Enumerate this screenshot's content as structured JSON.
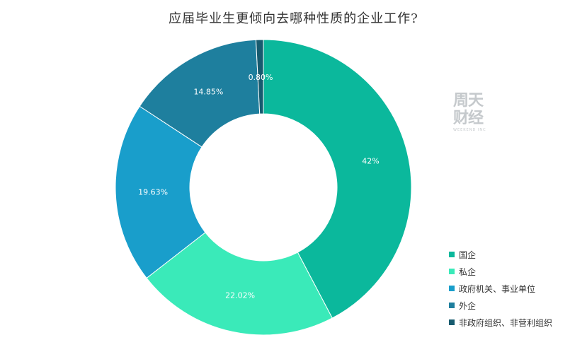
{
  "chart_data": {
    "type": "pie",
    "title": "应届毕业生更倾向去哪种性质的企业工作?",
    "donut": true,
    "legend_placement": "bottom-right",
    "categories": [
      "国企",
      "私企",
      "政府机关、事业单位",
      "外企",
      "非政府组织、非营利组织"
    ],
    "values": [
      42,
      22.02,
      19.63,
      14.85,
      0.8
    ],
    "value_labels": [
      "42%",
      "22.02%",
      "19.63%",
      "14.85%",
      "0.80%"
    ],
    "colors": [
      "#0bb89c",
      "#3aeab9",
      "#199ecb",
      "#1e7f9e",
      "#175b6f"
    ]
  },
  "watermark": {
    "line1": "周天",
    "line2": "财经",
    "sub": "WEEKEND INC"
  }
}
